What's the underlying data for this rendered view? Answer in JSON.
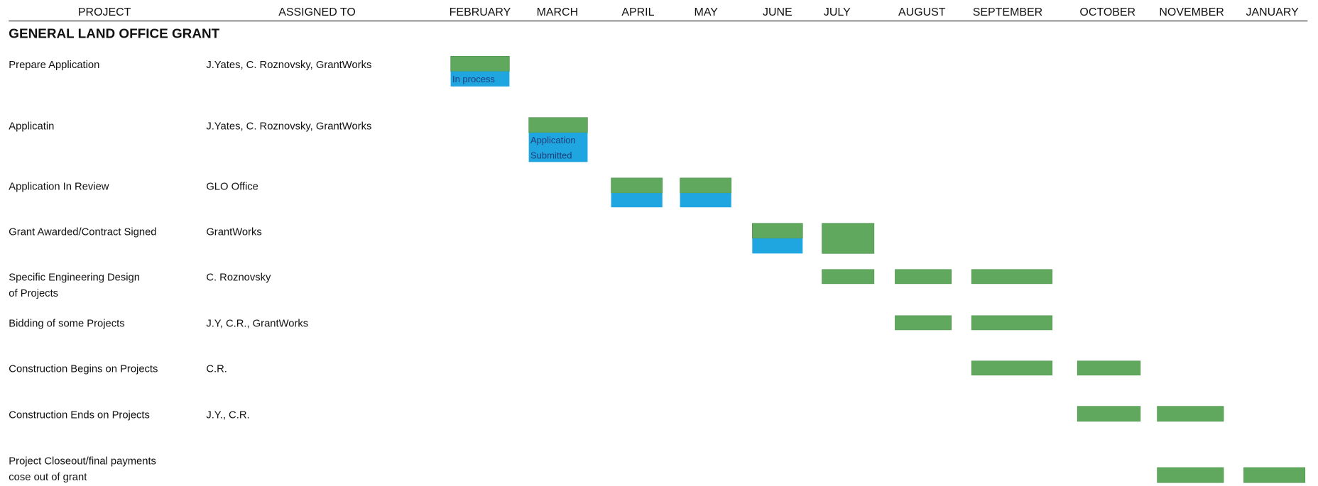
{
  "columns": [
    "PROJECT",
    "ASSIGNED TO",
    "FEBRUARY",
    "MARCH",
    "APRIL",
    "MAY",
    "JUNE",
    "JULY",
    "AUGUST",
    "SEPTEMBER",
    "OCTOBER",
    "NOVEMBER",
    "JANUARY"
  ],
  "section_title": "GENERAL  LAND OFFICE GRANT",
  "colors": {
    "done": "#5fa85d",
    "status": "#1fa5df"
  },
  "rows": [
    {
      "project": [
        "Prepare Application"
      ],
      "assigned": "J.Yates, C. Roznovsky, GrantWorks",
      "bars": [
        {
          "column": 2,
          "kind": "split",
          "label": [
            "In process"
          ]
        }
      ]
    },
    {
      "project": [
        "Applicatin"
      ],
      "assigned": "J.Yates, C. Roznovsky, GrantWorks",
      "bars": [
        {
          "column": 3,
          "kind": "split",
          "label": [
            "Application",
            "Submitted"
          ]
        }
      ]
    },
    {
      "project": [
        "Application In Review"
      ],
      "assigned": "GLO Office",
      "bars": [
        {
          "column": 4,
          "kind": "split"
        },
        {
          "column": 5,
          "kind": "split"
        }
      ]
    },
    {
      "project": [
        "Grant Awarded/Contract Signed"
      ],
      "assigned": "GrantWorks",
      "bars": [
        {
          "column": 6,
          "kind": "split"
        },
        {
          "column": 7,
          "kind": "done"
        }
      ]
    },
    {
      "project": [
        "Specific Engineering Design",
        "of Projects"
      ],
      "assigned": "C. Roznovsky",
      "bars": [
        {
          "column": 7,
          "kind": "done"
        },
        {
          "column": 8,
          "kind": "done"
        },
        {
          "column": 9,
          "kind": "done"
        }
      ]
    },
    {
      "project": [
        "Bidding of some Projects"
      ],
      "assigned": "J.Y, C.R., GrantWorks",
      "bars": [
        {
          "column": 8,
          "kind": "done"
        },
        {
          "column": 9,
          "kind": "done"
        }
      ]
    },
    {
      "project": [
        "Construction Begins on Projects"
      ],
      "assigned": "C.R.",
      "bars": [
        {
          "column": 9,
          "kind": "done"
        },
        {
          "column": 10,
          "kind": "done"
        }
      ]
    },
    {
      "project": [
        "Construction Ends on Projects"
      ],
      "assigned": "J.Y., C.R.",
      "bars": [
        {
          "column": 10,
          "kind": "done"
        },
        {
          "column": 11,
          "kind": "done"
        }
      ]
    },
    {
      "project": [
        "Project Closeout/final payments",
        "cose out of grant"
      ],
      "assigned": "",
      "bars": [
        {
          "column": 11,
          "kind": "done"
        },
        {
          "column": 12,
          "kind": "done"
        }
      ]
    }
  ]
}
